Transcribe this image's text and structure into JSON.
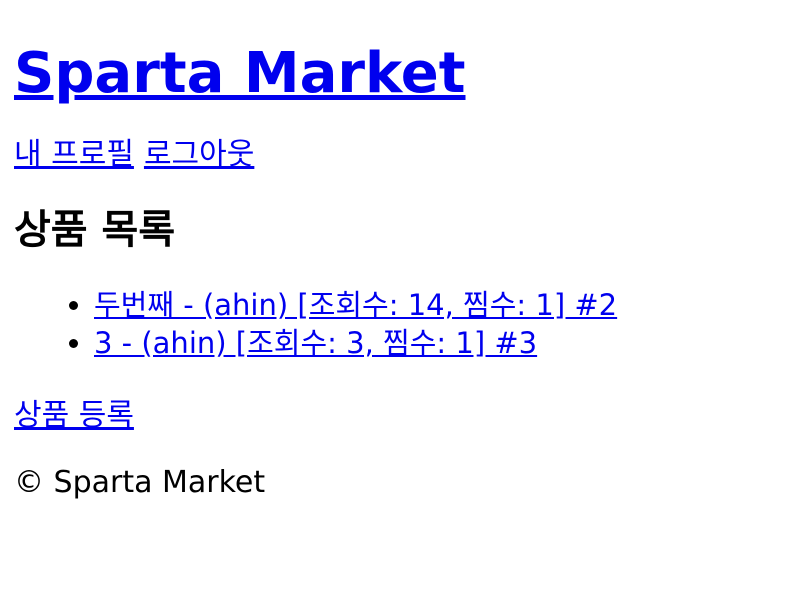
{
  "header": {
    "site_title": "Sparta Market"
  },
  "nav": {
    "profile_label": "내 프로필",
    "logout_label": "로그아웃"
  },
  "main": {
    "section_title": "상품 목록",
    "products": [
      {
        "label": "두번째 - (ahin) [조회수: 14, 찜수: 1] #2"
      },
      {
        "label": "3 - (ahin) [조회수: 3, 찜수: 1] #3"
      }
    ],
    "register_label": "상품 등록"
  },
  "footer": {
    "text": "© Sparta Market"
  },
  "colors": {
    "link": "#0000ee",
    "text": "#000000",
    "background": "#ffffff"
  }
}
